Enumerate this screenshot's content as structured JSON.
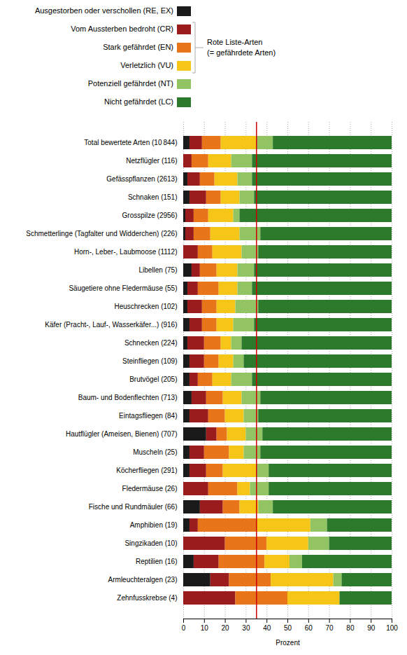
{
  "chart_data": {
    "type": "bar",
    "orientation": "horizontal",
    "stacked": true,
    "categories": [
      "Total bewertete Arten (10 844)",
      "Netzflügler (116)",
      "Gefässpflanzen (2613)",
      "Schnaken (151)",
      "Grosspilze (2956)",
      "Schmetterlinge (Tagfalter und Widderchen) (226)",
      "Horn-, Leber-, Laubmoose (1112)",
      "Libellen (75)",
      "Säugetiere ohne Fledermäuse (55)",
      "Heuschrecken (102)",
      "Käfer (Pracht-, Lauf-, Wasserkäfer...) (916)",
      "Schnecken (224)",
      "Steinfliegen (109)",
      "Brutvögel (205)",
      "Baum- und Bodenflechten (713)",
      "Eintagsfliegen (84)",
      "Hautflügler (Ameisen, Bienen) (707)",
      "Muscheln (25)",
      "Köcherfliegen (291)",
      "Fledermäuse (26)",
      "Fische und Rundmäuler (66)",
      "Amphibien (19)",
      "Singzikaden (10)",
      "Reptilien (16)",
      "Armleuchteralgen (23)",
      "Zehnfusskrebse (4)"
    ],
    "series": [
      {
        "name": "Ausgestorben oder verschollen (RE, EX)",
        "color": "#1a1a1a",
        "values": [
          3,
          0,
          2,
          3,
          1,
          1,
          0,
          4,
          2,
          2,
          3,
          2,
          3,
          3,
          4,
          3,
          11,
          3,
          3,
          0,
          8,
          3,
          0,
          5,
          13,
          0
        ]
      },
      {
        "name": "Vom Aussterben bedroht (CR)",
        "color": "#9b1c1c",
        "values": [
          6,
          4,
          6,
          8,
          4,
          4,
          7,
          4,
          5,
          7,
          6,
          8,
          7,
          4,
          7,
          9,
          5,
          7,
          8,
          12,
          11,
          4,
          20,
          12,
          9,
          25
        ]
      },
      {
        "name": "Stark gefährdet (EN)",
        "color": "#e8751a",
        "values": [
          9,
          8,
          7,
          7,
          7,
          8,
          7,
          8,
          10,
          7,
          7,
          8,
          7,
          7,
          8,
          8,
          5,
          12,
          8,
          14,
          8,
          28,
          20,
          22,
          20,
          25
        ]
      },
      {
        "name": "Verletzlich (VU)",
        "color": "#f5c518",
        "values": [
          17,
          11,
          11,
          9,
          12,
          14,
          14,
          10,
          9,
          9,
          8,
          5,
          7,
          9,
          9,
          9,
          9,
          7,
          16,
          6,
          9,
          26,
          20,
          12,
          30,
          25
        ]
      },
      {
        "name": "Potenziell gefährdet (NT)",
        "color": "#93c464",
        "values": [
          8,
          10,
          7,
          7,
          3,
          10,
          8,
          8,
          7,
          11,
          10,
          5,
          5,
          10,
          9,
          7,
          8,
          8,
          6,
          9,
          7,
          8,
          10,
          6,
          4,
          0
        ]
      },
      {
        "name": "Nicht gefährdet (LC)",
        "color": "#2d7a2d",
        "values": [
          57,
          67,
          67,
          66,
          73,
          63,
          64,
          66,
          67,
          64,
          66,
          72,
          71,
          67,
          63,
          64,
          62,
          63,
          59,
          59,
          57,
          31,
          30,
          43,
          24,
          25
        ]
      }
    ],
    "xlabel": "Prozent",
    "xlim": [
      0,
      100
    ],
    "xticks": [
      0,
      10,
      20,
      30,
      40,
      50,
      60,
      70,
      80,
      90,
      100
    ],
    "grid": true,
    "reference_lines": [
      {
        "x": 35,
        "color": "#cc0000"
      }
    ],
    "annotations": [
      {
        "text": "Rote Liste-Arten\n(= gefährdete Arten)",
        "series": [
          "Vom Aussterben bedroht (CR)",
          "Stark gefährdet (EN)",
          "Verletzlich (VU)"
        ]
      }
    ]
  }
}
